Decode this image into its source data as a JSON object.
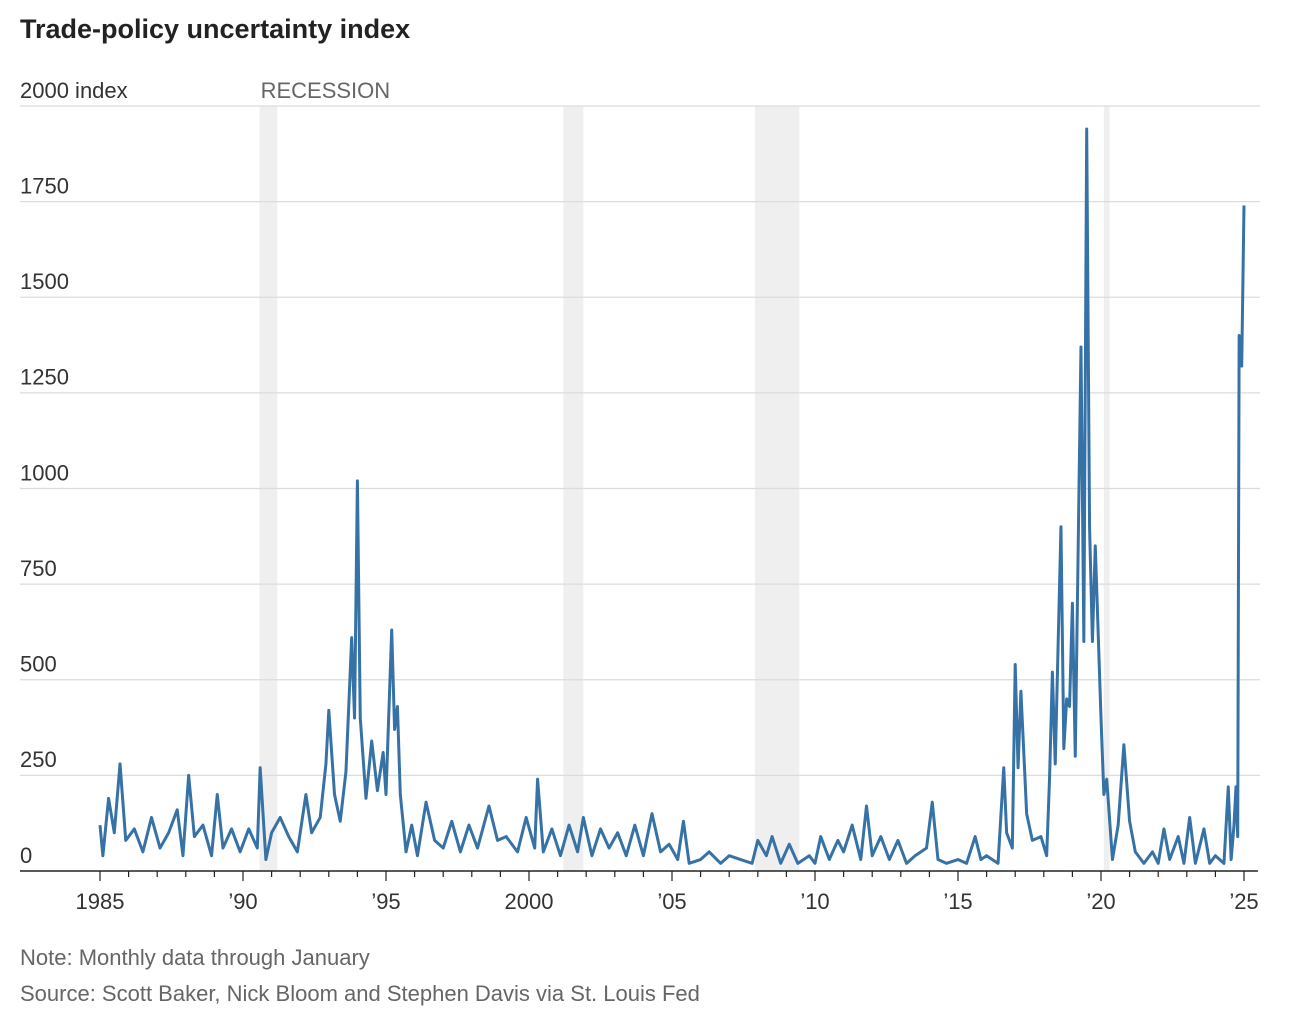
{
  "chart_data": {
    "type": "line",
    "title": "Trade-policy uncertainty index",
    "note": "Note: Monthly data through January",
    "source": "Source: Scott Baker, Nick Bloom and Stephen Davis via St. Louis Fed",
    "recession_label": "RECESSION",
    "recessions": [
      [
        1990.58,
        1991.2
      ],
      [
        2001.2,
        2001.9
      ],
      [
        2007.9,
        2009.45
      ],
      [
        2020.1,
        2020.3
      ]
    ],
    "color": "#3672a6",
    "grid": true,
    "xlim": [
      1985,
      2025
    ],
    "xticks": [
      1985,
      {
        "value": 1990,
        "label": "’90"
      },
      {
        "value": 1995,
        "label": "’95"
      },
      2000,
      {
        "value": 2005,
        "label": "’05"
      },
      {
        "value": 2010,
        "label": "’10"
      },
      {
        "value": 2015,
        "label": "’15"
      },
      {
        "value": 2020,
        "label": "’20"
      },
      {
        "value": 2025,
        "label": "’25"
      }
    ],
    "xminor_ticks": [
      1986,
      1987,
      1988,
      1989,
      1991,
      1992,
      1993,
      1994,
      1996,
      1997,
      1998,
      1999,
      2001,
      2002,
      2003,
      2004,
      2006,
      2007,
      2008,
      2009,
      2011,
      2012,
      2013,
      2014,
      2016,
      2017,
      2018,
      2019,
      2021,
      2022,
      2023,
      2024
    ],
    "ylim": [
      0,
      2000
    ],
    "yticks": [
      0,
      250,
      500,
      750,
      1000,
      1250,
      1500,
      1750,
      {
        "value": 2000,
        "label": "2000 index"
      }
    ],
    "x": [
      1985.0,
      1985.1,
      1985.3,
      1985.5,
      1985.7,
      1985.9,
      1986.2,
      1986.5,
      1986.8,
      1987.1,
      1987.4,
      1987.7,
      1987.9,
      1988.1,
      1988.3,
      1988.6,
      1988.9,
      1989.1,
      1989.3,
      1989.6,
      1989.9,
      1990.2,
      1990.5,
      1990.6,
      1990.8,
      1991.0,
      1991.3,
      1991.6,
      1991.9,
      1992.2,
      1992.4,
      1992.7,
      1992.9,
      1993.0,
      1993.2,
      1993.4,
      1993.6,
      1993.8,
      1993.9,
      1994.0,
      1994.1,
      1994.3,
      1994.5,
      1994.7,
      1994.9,
      1995.0,
      1995.2,
      1995.3,
      1995.4,
      1995.5,
      1995.7,
      1995.9,
      1996.1,
      1996.4,
      1996.7,
      1997.0,
      1997.3,
      1997.6,
      1997.9,
      1998.2,
      1998.6,
      1998.9,
      1999.2,
      1999.6,
      1999.9,
      2000.2,
      2000.3,
      2000.5,
      2000.8,
      2001.1,
      2001.4,
      2001.7,
      2001.9,
      2002.2,
      2002.5,
      2002.8,
      2003.1,
      2003.4,
      2003.7,
      2004.0,
      2004.3,
      2004.6,
      2004.9,
      2005.2,
      2005.4,
      2005.6,
      2006.0,
      2006.3,
      2006.7,
      2007.0,
      2007.4,
      2007.8,
      2008.0,
      2008.3,
      2008.5,
      2008.8,
      2009.1,
      2009.4,
      2009.8,
      2010.0,
      2010.2,
      2010.5,
      2010.8,
      2011.0,
      2011.3,
      2011.6,
      2011.8,
      2012.0,
      2012.3,
      2012.6,
      2012.9,
      2013.2,
      2013.5,
      2013.9,
      2014.1,
      2014.3,
      2014.6,
      2015.0,
      2015.3,
      2015.6,
      2015.8,
      2016.0,
      2016.4,
      2016.6,
      2016.7,
      2016.9,
      2017.0,
      2017.1,
      2017.2,
      2017.4,
      2017.6,
      2017.9,
      2018.1,
      2018.2,
      2018.3,
      2018.4,
      2018.6,
      2018.7,
      2018.8,
      2018.9,
      2019.0,
      2019.1,
      2019.3,
      2019.4,
      2019.5,
      2019.6,
      2019.7,
      2019.8,
      2020.0,
      2020.1,
      2020.2,
      2020.4,
      2020.6,
      2020.8,
      2021.0,
      2021.2,
      2021.5,
      2021.8,
      2022.0,
      2022.2,
      2022.4,
      2022.7,
      2022.9,
      2023.1,
      2023.3,
      2023.6,
      2023.8,
      2024.0,
      2024.3,
      2024.45,
      2024.55,
      2024.65,
      2024.72,
      2024.78,
      2024.83,
      2024.92,
      2025.0
    ],
    "values": [
      120,
      40,
      190,
      100,
      280,
      80,
      110,
      50,
      140,
      60,
      100,
      160,
      40,
      250,
      90,
      120,
      40,
      200,
      60,
      110,
      50,
      110,
      60,
      270,
      30,
      100,
      140,
      90,
      50,
      200,
      100,
      140,
      280,
      420,
      200,
      130,
      260,
      610,
      400,
      1020,
      400,
      190,
      340,
      210,
      310,
      200,
      630,
      370,
      430,
      200,
      50,
      120,
      40,
      180,
      80,
      60,
      130,
      50,
      120,
      60,
      170,
      80,
      90,
      50,
      140,
      60,
      240,
      50,
      110,
      40,
      120,
      50,
      140,
      40,
      110,
      60,
      100,
      40,
      120,
      40,
      150,
      50,
      70,
      30,
      130,
      20,
      30,
      50,
      20,
      40,
      30,
      20,
      80,
      40,
      90,
      20,
      70,
      20,
      40,
      20,
      90,
      30,
      80,
      50,
      120,
      30,
      170,
      40,
      90,
      30,
      80,
      20,
      40,
      60,
      180,
      30,
      20,
      30,
      20,
      90,
      30,
      40,
      20,
      270,
      100,
      60,
      540,
      270,
      470,
      150,
      80,
      90,
      40,
      240,
      520,
      280,
      900,
      320,
      450,
      430,
      700,
      300,
      1370,
      600,
      1940,
      900,
      600,
      850,
      400,
      200,
      240,
      30,
      120,
      330,
      130,
      50,
      20,
      50,
      20,
      110,
      30,
      90,
      20,
      140,
      20,
      110,
      20,
      40,
      20,
      220,
      30,
      120,
      220,
      90,
      1400,
      1320,
      1740
    ]
  }
}
